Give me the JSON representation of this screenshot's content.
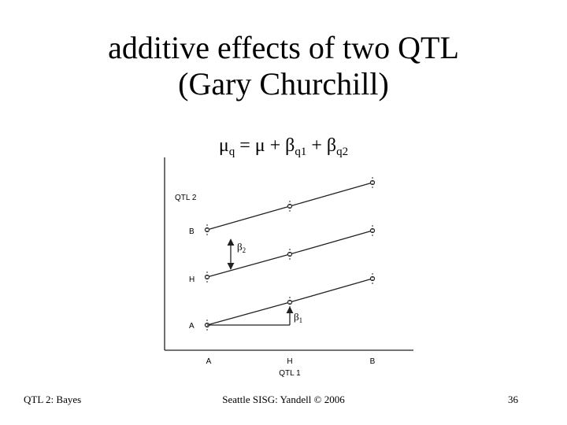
{
  "title": {
    "line1": "additive effects of two QTL",
    "line2": "(Gary Churchill)"
  },
  "equation": {
    "mu": "μ",
    "mu_sub": "q",
    "middle": " = μ + β",
    "sub1": "q1",
    "plus": " + β",
    "sub2": "q2"
  },
  "plot": {
    "y_axis_title": "QTL 2",
    "y_labels": [
      "B",
      "H",
      "A"
    ],
    "x_labels": [
      "A",
      "H",
      "B"
    ],
    "x_axis_title": "QTL 1",
    "beta2": "β",
    "beta2_sub": "2",
    "beta1": "β",
    "beta1_sub": "1"
  },
  "footer": {
    "left": "QTL 2: Bayes",
    "center": "Seattle SISG: Yandell © 2006",
    "page": "36"
  }
}
